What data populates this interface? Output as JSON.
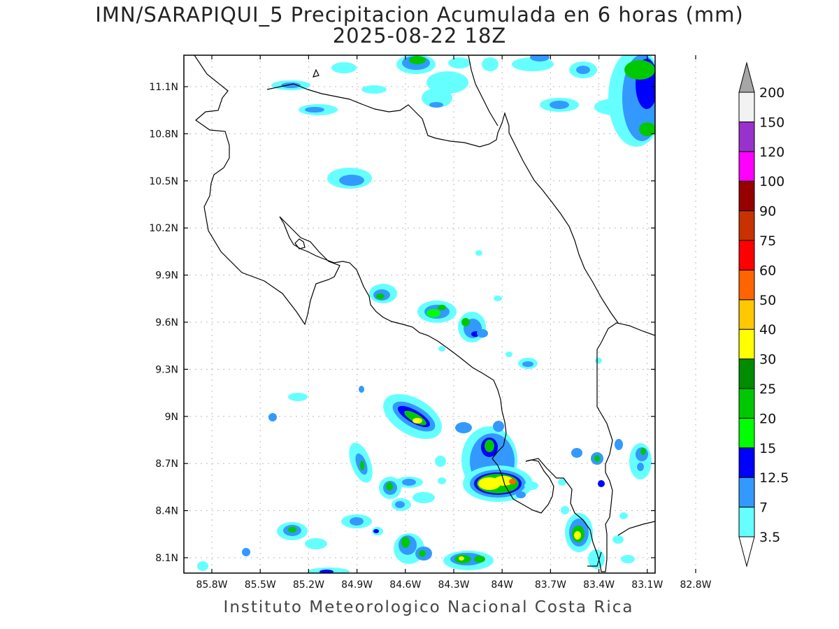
{
  "header": {
    "title": "IMN/SARAPIQUI_5 Precipitacion Acumulada en 6 horas (mm)",
    "subtitle": "2025-08-22 18Z"
  },
  "map": {
    "lat_ticks": [
      "11.1N",
      "10.8N",
      "10.5N",
      "10.2N",
      "9.9N",
      "9.6N",
      "9.3N",
      "9N",
      "8.7N",
      "8.4N",
      "8.1N"
    ],
    "lon_ticks": [
      "85.8W",
      "85.5W",
      "85.2W",
      "84.9W",
      "84.6W",
      "84.3W",
      "84W",
      "83.7W",
      "83.4W",
      "83.1W",
      "82.8W"
    ],
    "lat_range": [
      8.0,
      11.3
    ],
    "lon_range": [
      -85.9,
      -82.9
    ]
  },
  "colorbar": {
    "labels": [
      "3.5",
      "7",
      "12.5",
      "15",
      "20",
      "25",
      "30",
      "40",
      "50",
      "60",
      "75",
      "90",
      "100",
      "120",
      "150",
      "200"
    ],
    "colors": [
      "#ffffff",
      "#66ffff",
      "#3399ff",
      "#0000ff",
      "#00ff00",
      "#00c800",
      "#008c00",
      "#ffff00",
      "#ffc800",
      "#ff6400",
      "#ff0000",
      "#c83200",
      "#960000",
      "#ff00ff",
      "#9932cc",
      "#f2f2f2",
      "#a6a6a6"
    ]
  },
  "footer": {
    "credit": "Instituto Meteorologico Nacional Costa Rica"
  }
}
